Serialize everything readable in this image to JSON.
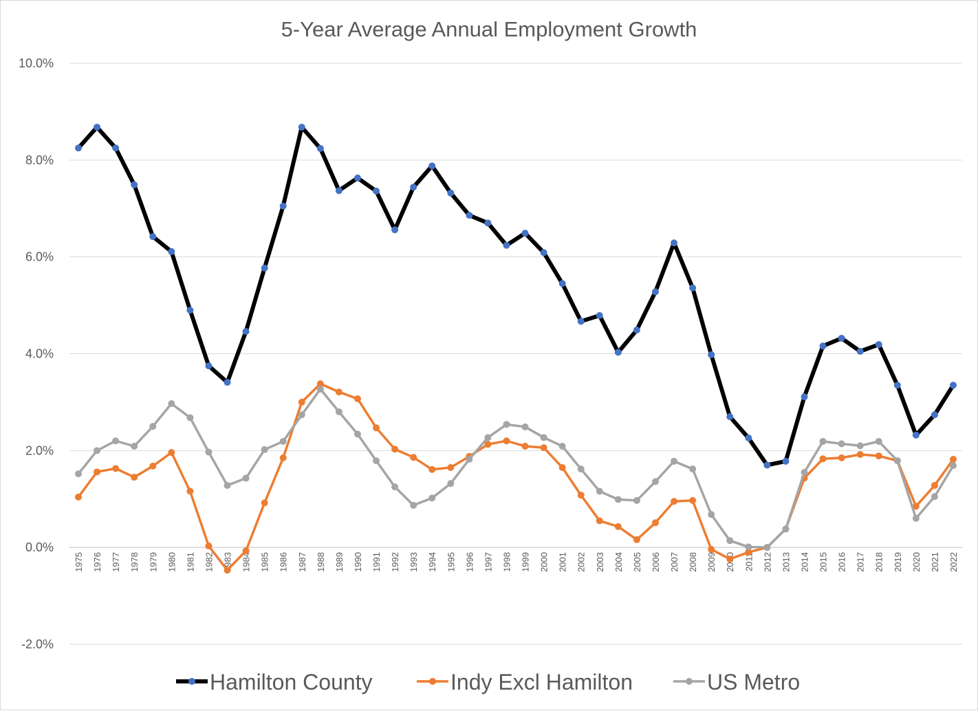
{
  "chart_data": {
    "type": "line",
    "title": "5-Year Average Annual Employment Growth",
    "xlabel": "",
    "ylabel": "",
    "ylim": [
      -2.0,
      10.0
    ],
    "ytick_step": 2.0,
    "ytick_labels": [
      "-2.0%",
      "0.0%",
      "2.0%",
      "4.0%",
      "6.0%",
      "8.0%",
      "10.0%"
    ],
    "grid": true,
    "legend_position": "bottom",
    "x": [
      "1975",
      "1976",
      "1977",
      "1978",
      "1979",
      "1980",
      "1981",
      "1982",
      "1983",
      "1984",
      "1985",
      "1986",
      "1987",
      "1988",
      "1989",
      "1990",
      "1991",
      "1992",
      "1993",
      "1994",
      "1995",
      "1996",
      "1997",
      "1998",
      "1999",
      "2000",
      "2001",
      "2002",
      "2003",
      "2004",
      "2005",
      "2006",
      "2007",
      "2008",
      "2009",
      "2010",
      "2011",
      "2012",
      "2013",
      "2014",
      "2015",
      "2016",
      "2017",
      "2018",
      "2019",
      "2020",
      "2021",
      "2022"
    ],
    "series": [
      {
        "name": "Hamilton County",
        "color": "#000000",
        "marker_color": "#4472c4",
        "values": [
          8.25,
          8.68,
          8.25,
          7.49,
          6.42,
          6.11,
          4.9,
          3.75,
          3.41,
          4.46,
          5.77,
          7.05,
          8.68,
          8.24,
          7.37,
          7.63,
          7.36,
          6.56,
          7.44,
          7.88,
          7.32,
          6.86,
          6.7,
          6.24,
          6.49,
          6.09,
          5.45,
          4.67,
          4.79,
          4.03,
          4.49,
          5.28,
          6.29,
          5.36,
          3.98,
          2.7,
          2.26,
          1.7,
          1.78,
          3.11,
          4.16,
          4.32,
          4.05,
          4.19,
          3.35,
          2.32,
          2.74,
          3.35
        ]
      },
      {
        "name": "Indy Excl Hamilton",
        "color": "#ed7d31",
        "marker_color": "#ed7d31",
        "values": [
          1.04,
          1.56,
          1.63,
          1.45,
          1.68,
          1.96,
          1.16,
          0.03,
          -0.47,
          -0.07,
          0.92,
          1.85,
          3.0,
          3.38,
          3.21,
          3.07,
          2.47,
          2.03,
          1.86,
          1.61,
          1.65,
          1.88,
          2.13,
          2.2,
          2.09,
          2.06,
          1.65,
          1.08,
          0.55,
          0.43,
          0.16,
          0.51,
          0.95,
          0.97,
          -0.04,
          -0.24,
          -0.1,
          0.0,
          0.38,
          1.43,
          1.83,
          1.85,
          1.92,
          1.89,
          1.79,
          0.85,
          1.28,
          1.82
        ]
      },
      {
        "name": "US Metro",
        "color": "#a5a5a5",
        "marker_color": "#a5a5a5",
        "values": [
          1.52,
          2.0,
          2.2,
          2.09,
          2.5,
          2.97,
          2.68,
          1.97,
          1.28,
          1.43,
          2.02,
          2.19,
          2.74,
          3.27,
          2.8,
          2.34,
          1.79,
          1.25,
          0.87,
          1.02,
          1.32,
          1.82,
          2.27,
          2.54,
          2.49,
          2.27,
          2.09,
          1.62,
          1.16,
          0.99,
          0.97,
          1.36,
          1.78,
          1.62,
          0.68,
          0.14,
          0.01,
          0.0,
          0.38,
          1.55,
          2.19,
          2.14,
          2.1,
          2.19,
          1.79,
          0.6,
          1.05,
          1.69
        ]
      }
    ]
  }
}
